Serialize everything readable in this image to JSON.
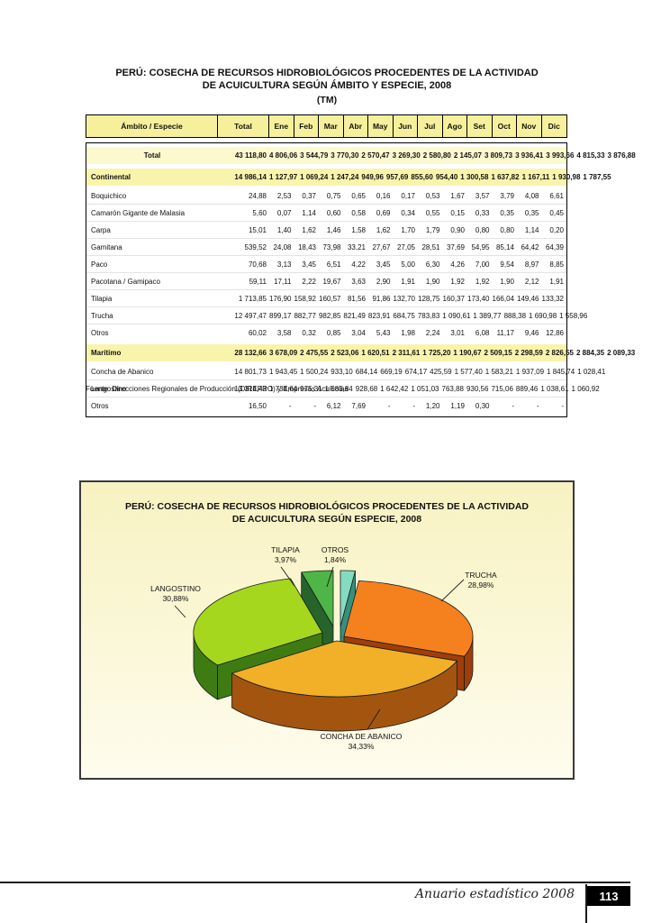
{
  "table_section": {
    "title_line1": "PERÚ: COSECHA DE RECURSOS HIDROBIOLÓGICOS PROCEDENTES DE LA ACTIVIDAD",
    "title_line2": "DE ACUICULTURA SEGÚN ÁMBITO Y ESPECIE, 2008",
    "title_line3": "(TM)",
    "columns": [
      "Ámbito / Especie",
      "Total",
      "Ene",
      "Feb",
      "Mar",
      "Abr",
      "May",
      "Jun",
      "Jul",
      "Ago",
      "Set",
      "Oct",
      "Nov",
      "Dic"
    ],
    "rows": [
      {
        "label": "Total",
        "style": "total",
        "values": [
          "43 118,80",
          "4 806,06",
          "3 544,79",
          "3 770,30",
          "2 570,47",
          "3 269,30",
          "2 580,80",
          "2 145,07",
          "3 809,73",
          "3 936,41",
          "3 993,66",
          "4 815,33",
          "3 876,88"
        ]
      },
      {
        "label": "Continental",
        "style": "group",
        "values": [
          "14 986,14",
          "1 127,97",
          "1 069,24",
          "1 247,24",
          "949,96",
          "957,69",
          "855,60",
          "954,40",
          "1 300,58",
          "1 637,82",
          "1 167,11",
          "1 930,98",
          "1 787,55"
        ]
      },
      {
        "label": "Boquichico",
        "style": "plain",
        "values": [
          "24,88",
          "2,53",
          "0,37",
          "0,75",
          "0,65",
          "0,16",
          "0,17",
          "0,53",
          "1,67",
          "3,57",
          "3,79",
          "4,08",
          "6,61"
        ]
      },
      {
        "label": "Camarón Gigante de Malasia",
        "style": "plain",
        "values": [
          "5,60",
          "0,07",
          "1,14",
          "0,60",
          "0,58",
          "0,69",
          "0,34",
          "0,55",
          "0,15",
          "0,33",
          "0,35",
          "0,35",
          "0,45"
        ]
      },
      {
        "label": "Carpa",
        "style": "plain",
        "values": [
          "15,01",
          "1,40",
          "1,62",
          "1,46",
          "1,58",
          "1,62",
          "1,70",
          "1,79",
          "0,90",
          "0,80",
          "0,80",
          "1,14",
          "0,20"
        ]
      },
      {
        "label": "Gamitana",
        "style": "plain",
        "values": [
          "539,52",
          "24,08",
          "18,43",
          "73,98",
          "33,21",
          "27,67",
          "27,05",
          "28,51",
          "37,69",
          "54,95",
          "85,14",
          "64,42",
          "64,39"
        ]
      },
      {
        "label": "Paco",
        "style": "plain",
        "values": [
          "70,68",
          "3,13",
          "3,45",
          "6,51",
          "4,22",
          "3,45",
          "5,00",
          "6,30",
          "4,26",
          "7,00",
          "9,54",
          "8,97",
          "8,85"
        ]
      },
      {
        "label": "Pacotana / Gamipaco",
        "style": "plain",
        "values": [
          "59,11",
          "17,11",
          "2,22",
          "19,67",
          "3,63",
          "2,90",
          "1,91",
          "1,90",
          "1,92",
          "1,92",
          "1,90",
          "2,12",
          "1,91"
        ]
      },
      {
        "label": "Tilapia",
        "style": "plain",
        "values": [
          "1 713,85",
          "176,90",
          "158,92",
          "160,57",
          "81,56",
          "91,86",
          "132,70",
          "128,75",
          "160,37",
          "173,40",
          "166,04",
          "149,46",
          "133,32"
        ]
      },
      {
        "label": "Trucha",
        "style": "plain",
        "values": [
          "12 497,47",
          "899,17",
          "882,77",
          "982,85",
          "821,49",
          "823,91",
          "684,75",
          "783,83",
          "1 090,61",
          "1 389,77",
          "888,38",
          "1 690,98",
          "1 558,96"
        ]
      },
      {
        "label": "Otros",
        "style": "plain",
        "values": [
          "60,02",
          "3,58",
          "0,32",
          "0,85",
          "3,04",
          "5,43",
          "1,98",
          "2,24",
          "3,01",
          "6,08",
          "11,17",
          "9,46",
          "12,86"
        ]
      },
      {
        "label": "Marítimo",
        "style": "group",
        "values": [
          "28 132,66",
          "3 678,09",
          "2 475,55",
          "2 523,06",
          "1 620,51",
          "2 311,61",
          "1 725,20",
          "1 190,67",
          "2 509,15",
          "2 298,59",
          "2 826,55",
          "2 884,35",
          "2 089,33"
        ]
      },
      {
        "label": "Concha de Abanico",
        "style": "plain",
        "values": [
          "14 801,73",
          "1 943,45",
          "1 500,24",
          "933,10",
          "684,14",
          "669,19",
          "674,17",
          "425,59",
          "1 577,40",
          "1 583,21",
          "1 937,09",
          "1 845,74",
          "1 028,41"
        ]
      },
      {
        "label": "Langostino",
        "style": "plain",
        "values": [
          "13 314,43",
          "1 734,64",
          "975,31",
          "1 583,84",
          "928,68",
          "1 642,42",
          "1 051,03",
          "763,88",
          "930,56",
          "715,06",
          "889,46",
          "1 038,61",
          "1 060,92"
        ]
      },
      {
        "label": "Otros",
        "style": "plain",
        "values": [
          "16,50",
          "-",
          "-",
          "6,12",
          "7,69",
          "-",
          "-",
          "1,20",
          "1,19",
          "0,30",
          "-",
          "-",
          "-"
        ]
      }
    ],
    "source": "Fuente: Direcciones Regionales de Producción (DIREPRO) y Empresas Acuícolas"
  },
  "chart_data": {
    "type": "pie",
    "title_line1": "PERÚ: COSECHA DE RECURSOS HIDROBIOLÓGICOS PROCEDENTES DE LA ACTIVIDAD",
    "title_line2": "DE ACUICULTURA SEGÚN ESPECIE, 2008",
    "start_angle_deg": -90,
    "legend_position": "callout-labels",
    "slices": [
      {
        "label": "OTROS",
        "pct_label": "1,84%",
        "value": 1.84,
        "color": "#84DCC0",
        "side": "#35917B",
        "explode": [
          4,
          -16
        ]
      },
      {
        "label": "TRUCHA",
        "pct_label": "28,98%",
        "value": 28.98,
        "color": "#F5811E",
        "side": "#9E3E0A",
        "explode": [
          8,
          -5
        ]
      },
      {
        "label": "CONCHA DE ABANICO",
        "pct_label": "34,33%",
        "value": 34.33,
        "color": "#F2B029",
        "side": "#A3550F",
        "explode": [
          0,
          0
        ]
      },
      {
        "label": "LANGOSTINO",
        "pct_label": "30,88%",
        "value": 30.88,
        "color": "#A5D71E",
        "side": "#3E7C13",
        "explode": [
          -16,
          -9
        ]
      },
      {
        "label": "TILAPIA",
        "pct_label": "3,97%",
        "value": 3.97,
        "color": "#4FB548",
        "side": "#27642B",
        "explode": [
          -4,
          -16
        ]
      }
    ]
  },
  "footer": {
    "text": "Anuario estadístico 2008",
    "page_number": "113"
  }
}
